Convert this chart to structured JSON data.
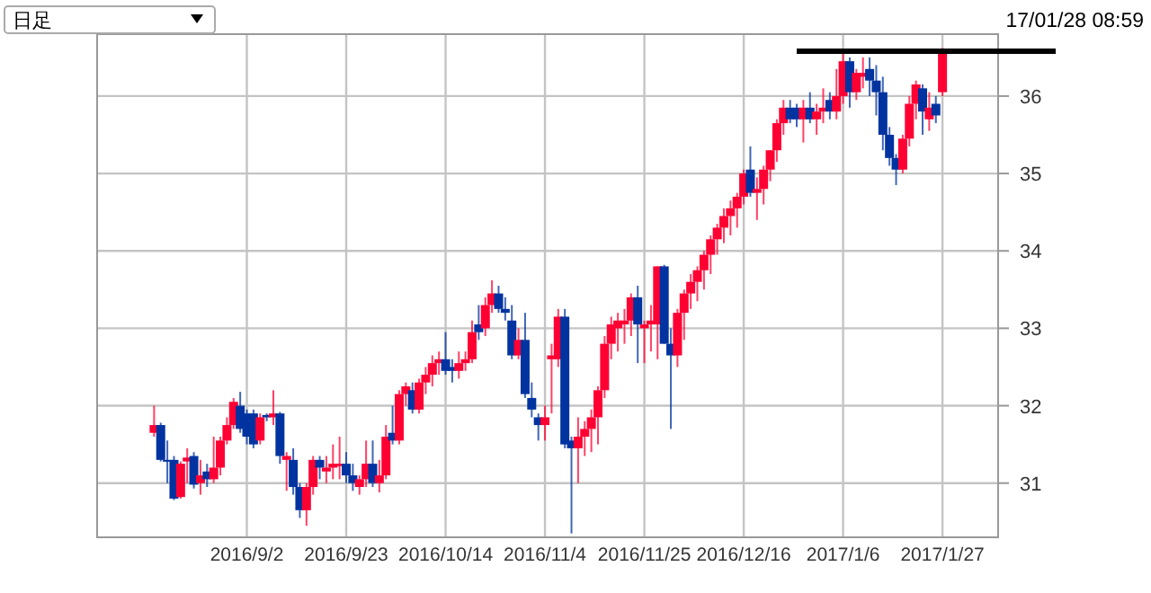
{
  "chart_data": {
    "type": "candlestick",
    "annotations": [
      "日足",
      "17/01/28 08:59"
    ],
    "categories": [
      null,
      null,
      null,
      null,
      null,
      null,
      null,
      null,
      null,
      null,
      null,
      null,
      null,
      null,
      "2016/9/2",
      null,
      null,
      null,
      null,
      null,
      null,
      null,
      null,
      null,
      null,
      null,
      null,
      null,
      null,
      "2016/9/23",
      null,
      null,
      null,
      null,
      null,
      null,
      null,
      null,
      null,
      null,
      null,
      null,
      null,
      null,
      "2016/10/14",
      null,
      null,
      null,
      null,
      null,
      null,
      null,
      null,
      null,
      null,
      null,
      null,
      null,
      null,
      "2016/11/4",
      null,
      null,
      null,
      null,
      null,
      null,
      null,
      null,
      null,
      null,
      null,
      null,
      null,
      null,
      "2016/11/25",
      null,
      null,
      null,
      null,
      null,
      null,
      null,
      null,
      null,
      null,
      null,
      null,
      null,
      null,
      "2016/12/16",
      null,
      null,
      null,
      null,
      null,
      null,
      null,
      null,
      null,
      null,
      null,
      null,
      null,
      null,
      "2017/1/6",
      null,
      null,
      null,
      null,
      null,
      null,
      null,
      null,
      null,
      null,
      null,
      null,
      null,
      null,
      "2017/1/27"
    ],
    "ohlc": [
      [
        31.65,
        32.0,
        31.6,
        31.75
      ],
      [
        31.75,
        31.78,
        31.28,
        31.3
      ],
      [
        31.3,
        31.55,
        31.0,
        31.28
      ],
      [
        31.3,
        31.35,
        30.78,
        30.8
      ],
      [
        30.82,
        31.28,
        30.8,
        31.25
      ],
      [
        31.28,
        31.45,
        31.0,
        31.33
      ],
      [
        31.35,
        31.4,
        30.93,
        30.98
      ],
      [
        31.0,
        31.3,
        30.85,
        31.1
      ],
      [
        31.15,
        31.25,
        30.95,
        31.05
      ],
      [
        31.05,
        31.6,
        31.0,
        31.2
      ],
      [
        31.2,
        31.6,
        31.1,
        31.55
      ],
      [
        31.55,
        31.85,
        31.5,
        31.75
      ],
      [
        31.75,
        32.1,
        31.7,
        32.05
      ],
      [
        32.0,
        32.18,
        31.65,
        31.7
      ],
      [
        31.9,
        31.95,
        31.5,
        31.6
      ],
      [
        31.9,
        31.95,
        31.45,
        31.5
      ],
      [
        31.55,
        31.9,
        31.5,
        31.85
      ],
      [
        31.88,
        31.9,
        31.8,
        31.85
      ],
      [
        31.85,
        32.2,
        31.75,
        31.9
      ],
      [
        31.9,
        31.92,
        31.25,
        31.35
      ],
      [
        31.3,
        31.4,
        30.9,
        31.35
      ],
      [
        31.3,
        31.45,
        30.85,
        30.95
      ],
      [
        30.95,
        31.0,
        30.55,
        30.65
      ],
      [
        30.65,
        31.0,
        30.45,
        30.95
      ],
      [
        30.95,
        31.35,
        30.85,
        31.3
      ],
      [
        31.3,
        31.35,
        31.05,
        31.2
      ],
      [
        31.15,
        31.35,
        31.0,
        31.2
      ],
      [
        31.2,
        31.5,
        31.05,
        31.25
      ],
      [
        31.22,
        31.6,
        31.05,
        31.25
      ],
      [
        31.25,
        31.4,
        31.0,
        31.1
      ],
      [
        31.1,
        31.25,
        30.9,
        31.0
      ],
      [
        30.95,
        31.1,
        30.85,
        31.05
      ],
      [
        31.05,
        31.55,
        30.95,
        31.25
      ],
      [
        31.25,
        31.55,
        30.95,
        31.0
      ],
      [
        31.0,
        31.3,
        30.88,
        31.1
      ],
      [
        31.1,
        31.75,
        31.05,
        31.6
      ],
      [
        31.65,
        32.0,
        31.5,
        31.55
      ],
      [
        31.55,
        32.2,
        31.5,
        32.15
      ],
      [
        32.15,
        32.3,
        32.0,
        32.25
      ],
      [
        32.2,
        32.3,
        31.9,
        31.95
      ],
      [
        31.95,
        32.35,
        31.9,
        32.3
      ],
      [
        32.3,
        32.5,
        32.15,
        32.4
      ],
      [
        32.4,
        32.65,
        32.25,
        32.55
      ],
      [
        32.55,
        32.7,
        32.4,
        32.6
      ],
      [
        32.6,
        32.95,
        32.4,
        32.45
      ],
      [
        32.5,
        32.6,
        32.3,
        32.45
      ],
      [
        32.45,
        32.7,
        32.35,
        32.55
      ],
      [
        32.55,
        32.7,
        32.45,
        32.6
      ],
      [
        32.6,
        33.1,
        32.55,
        32.95
      ],
      [
        33.05,
        33.3,
        32.85,
        32.95
      ],
      [
        33.0,
        33.4,
        32.9,
        33.3
      ],
      [
        33.3,
        33.62,
        33.2,
        33.45
      ],
      [
        33.45,
        33.55,
        33.2,
        33.25
      ],
      [
        33.25,
        33.4,
        33.1,
        33.2
      ],
      [
        33.1,
        33.3,
        32.6,
        32.65
      ],
      [
        32.65,
        33.0,
        32.6,
        32.85
      ],
      [
        32.85,
        33.2,
        32.1,
        32.15
      ],
      [
        32.1,
        32.3,
        31.85,
        31.95
      ],
      [
        31.85,
        31.9,
        31.55,
        31.75
      ],
      [
        31.75,
        32.0,
        31.55,
        31.85
      ],
      [
        32.6,
        32.8,
        31.9,
        32.65
      ],
      [
        32.6,
        33.25,
        32.5,
        33.15
      ],
      [
        33.15,
        33.25,
        31.45,
        31.5
      ],
      [
        31.55,
        31.6,
        30.35,
        31.45
      ],
      [
        31.45,
        31.85,
        31.0,
        31.6
      ],
      [
        31.6,
        31.8,
        31.35,
        31.7
      ],
      [
        31.7,
        31.95,
        31.4,
        31.85
      ],
      [
        31.85,
        32.25,
        31.5,
        32.2
      ],
      [
        32.2,
        32.9,
        32.1,
        32.8
      ],
      [
        32.8,
        33.15,
        32.6,
        33.05
      ],
      [
        33.0,
        33.2,
        32.7,
        33.1
      ],
      [
        33.05,
        33.25,
        32.8,
        33.1
      ],
      [
        33.1,
        33.45,
        32.9,
        33.4
      ],
      [
        33.4,
        33.55,
        32.55,
        33.05
      ],
      [
        33.0,
        33.1,
        32.55,
        33.05
      ],
      [
        33.05,
        33.3,
        32.7,
        33.1
      ],
      [
        33.05,
        33.8,
        32.6,
        33.8
      ],
      [
        33.8,
        33.82,
        32.8,
        32.8
      ],
      [
        32.8,
        33.0,
        31.7,
        32.65
      ],
      [
        32.65,
        33.25,
        32.5,
        33.2
      ],
      [
        33.2,
        33.5,
        32.85,
        33.45
      ],
      [
        33.45,
        33.7,
        33.25,
        33.6
      ],
      [
        33.6,
        33.8,
        33.35,
        33.75
      ],
      [
        33.75,
        34.0,
        33.5,
        33.95
      ],
      [
        33.95,
        34.2,
        33.7,
        34.15
      ],
      [
        34.15,
        34.35,
        33.95,
        34.3
      ],
      [
        34.3,
        34.55,
        34.1,
        34.45
      ],
      [
        34.45,
        34.65,
        34.2,
        34.55
      ],
      [
        34.55,
        34.75,
        34.3,
        34.7
      ],
      [
        34.7,
        35.05,
        34.6,
        35.0
      ],
      [
        35.05,
        35.35,
        34.7,
        34.75
      ],
      [
        34.75,
        34.95,
        34.4,
        34.8
      ],
      [
        34.8,
        35.1,
        34.6,
        35.05
      ],
      [
        35.05,
        35.3,
        34.9,
        35.3
      ],
      [
        35.3,
        35.7,
        35.15,
        35.65
      ],
      [
        35.65,
        35.95,
        35.5,
        35.85
      ],
      [
        35.85,
        35.95,
        35.65,
        35.7
      ],
      [
        35.85,
        35.9,
        35.6,
        35.7
      ],
      [
        35.7,
        35.95,
        35.4,
        35.85
      ],
      [
        35.85,
        36.05,
        35.65,
        35.7
      ],
      [
        35.7,
        35.9,
        35.5,
        35.8
      ],
      [
        35.8,
        36.1,
        35.65,
        35.85
      ],
      [
        35.95,
        36.05,
        35.7,
        35.8
      ],
      [
        35.8,
        36.35,
        35.7,
        36.0
      ],
      [
        36.0,
        36.6,
        35.9,
        36.45
      ],
      [
        36.45,
        36.5,
        35.85,
        36.05
      ],
      [
        36.05,
        36.35,
        35.95,
        36.3
      ],
      [
        36.25,
        36.5,
        36.1,
        36.3
      ],
      [
        36.35,
        36.5,
        36.0,
        36.2
      ],
      [
        36.2,
        36.4,
        35.75,
        36.05
      ],
      [
        36.05,
        36.25,
        35.3,
        35.5
      ],
      [
        35.5,
        35.6,
        35.1,
        35.2
      ],
      [
        35.2,
        35.25,
        34.85,
        35.05
      ],
      [
        35.05,
        35.5,
        35.0,
        35.45
      ],
      [
        35.45,
        36.0,
        35.35,
        35.9
      ],
      [
        35.9,
        36.2,
        35.7,
        36.15
      ],
      [
        36.1,
        36.15,
        35.5,
        35.8
      ],
      [
        35.7,
        36.05,
        35.55,
        35.85
      ],
      [
        35.9,
        36.0,
        35.65,
        35.75
      ],
      [
        36.05,
        36.62,
        36.0,
        36.6
      ]
    ],
    "colors": [
      "#ff0033",
      "#0033a0",
      "#0033a0",
      "#0033a0",
      "#ff0033",
      "#ff0033",
      "#0033a0",
      "#ff0033",
      "#0033a0",
      "#ff0033",
      "#ff0033",
      "#ff0033",
      "#ff0033",
      "#0033a0",
      "#0033a0",
      "#0033a0",
      "#ff0033",
      "#0033a0",
      "#ff0033",
      "#0033a0",
      "#ff0033",
      "#0033a0",
      "#0033a0",
      "#ff0033",
      "#ff0033",
      "#0033a0",
      "#ff0033",
      "#ff0033",
      "#ff0033",
      "#0033a0",
      "#0033a0",
      "#ff0033",
      "#ff0033",
      "#0033a0",
      "#ff0033",
      "#ff0033",
      "#0033a0",
      "#ff0033",
      "#ff0033",
      "#0033a0",
      "#ff0033",
      "#ff0033",
      "#ff0033",
      "#ff0033",
      "#0033a0",
      "#0033a0",
      "#ff0033",
      "#ff0033",
      "#ff0033",
      "#0033a0",
      "#ff0033",
      "#ff0033",
      "#0033a0",
      "#0033a0",
      "#0033a0",
      "#ff0033",
      "#0033a0",
      "#0033a0",
      "#0033a0",
      "#ff0033",
      "#ff0033",
      "#ff0033",
      "#0033a0",
      "#0033a0",
      "#ff0033",
      "#ff0033",
      "#ff0033",
      "#ff0033",
      "#ff0033",
      "#ff0033",
      "#ff0033",
      "#ff0033",
      "#ff0033",
      "#0033a0",
      "#ff0033",
      "#ff0033",
      "#ff0033",
      "#0033a0",
      "#0033a0",
      "#ff0033",
      "#ff0033",
      "#ff0033",
      "#ff0033",
      "#ff0033",
      "#ff0033",
      "#ff0033",
      "#ff0033",
      "#ff0033",
      "#ff0033",
      "#ff0033",
      "#0033a0",
      "#ff0033",
      "#ff0033",
      "#ff0033",
      "#ff0033",
      "#ff0033",
      "#0033a0",
      "#0033a0",
      "#ff0033",
      "#0033a0",
      "#ff0033",
      "#ff0033",
      "#0033a0",
      "#ff0033",
      "#ff0033",
      "#0033a0",
      "#ff0033",
      "#ff0033",
      "#0033a0",
      "#0033a0",
      "#0033a0",
      "#0033a0",
      "#0033a0",
      "#ff0033",
      "#ff0033",
      "#ff0033",
      "#0033a0",
      "#ff0033",
      "#0033a0",
      "#ff0033"
    ],
    "ylim": [
      30.3,
      36.8
    ],
    "yticks": [
      31,
      32,
      33,
      34,
      35,
      36
    ],
    "grid": true,
    "ref_lines": [
      {
        "axis": "y",
        "value": 36.58,
        "color": "#000000"
      }
    ]
  }
}
